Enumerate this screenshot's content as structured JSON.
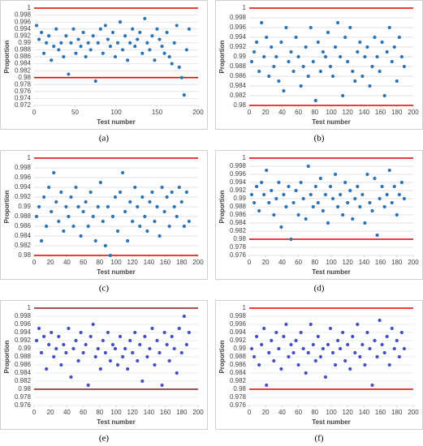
{
  "chart_data": [
    {
      "type": "scatter",
      "caption": "(a)",
      "ylabel": "Proportion",
      "xlabel": "Test number",
      "color": "#2e75b6",
      "reference_lines": [
        0.98,
        1
      ],
      "reference_color": "#e00000",
      "grid": true,
      "grid_color": "#d9d9d9",
      "xlim": [
        0,
        200
      ],
      "xticks": [
        0,
        50,
        100,
        150,
        200
      ],
      "ylim": [
        0.972,
        1
      ],
      "yticks": [
        0.972,
        0.974,
        0.976,
        0.978,
        0.98,
        0.982,
        0.984,
        0.986,
        0.988,
        0.99,
        0.992,
        0.994,
        0.996,
        0.998,
        1
      ],
      "x": [
        3,
        6,
        9,
        12,
        15,
        18,
        21,
        24,
        27,
        30,
        33,
        36,
        39,
        42,
        45,
        48,
        51,
        54,
        57,
        60,
        63,
        66,
        69,
        72,
        75,
        78,
        81,
        84,
        87,
        90,
        93,
        96,
        99,
        102,
        105,
        108,
        111,
        114,
        117,
        120,
        123,
        126,
        129,
        132,
        135,
        138,
        141,
        144,
        147,
        150,
        153,
        156,
        159,
        162,
        165,
        168,
        171,
        174,
        177,
        180,
        183,
        186,
        189
      ],
      "values": [
        0.995,
        0.991,
        0.993,
        0.987,
        0.99,
        0.992,
        0.985,
        0.989,
        0.994,
        0.988,
        0.99,
        0.986,
        0.992,
        0.981,
        0.99,
        0.994,
        0.987,
        0.991,
        0.989,
        0.993,
        0.986,
        0.99,
        0.988,
        0.992,
        0.979,
        0.99,
        0.994,
        0.987,
        0.995,
        0.991,
        0.989,
        0.993,
        0.986,
        0.99,
        0.996,
        0.988,
        0.992,
        0.985,
        0.99,
        0.994,
        0.989,
        0.991,
        0.993,
        0.987,
        0.997,
        0.99,
        0.988,
        0.992,
        0.985,
        0.994,
        0.991,
        0.989,
        0.987,
        0.993,
        0.986,
        0.984,
        0.99,
        0.995,
        0.983,
        0.98,
        0.975,
        0.988,
        0.994
      ]
    },
    {
      "type": "scatter",
      "caption": "(b)",
      "ylabel": "Proportion",
      "xlabel": "Test number",
      "color": "#2e75b6",
      "reference_lines": [
        0.98,
        1
      ],
      "reference_color": "#e00000",
      "grid": true,
      "grid_color": "#d9d9d9",
      "xlim": [
        0,
        200
      ],
      "xticks": [
        0,
        20,
        40,
        60,
        80,
        100,
        120,
        140,
        160,
        180,
        200
      ],
      "ylim": [
        0.98,
        1
      ],
      "yticks": [
        0.98,
        0.982,
        0.984,
        0.986,
        0.988,
        0.99,
        0.992,
        0.994,
        0.996,
        0.998,
        1
      ],
      "x": [
        3,
        6,
        9,
        12,
        15,
        18,
        21,
        24,
        27,
        30,
        33,
        36,
        39,
        42,
        45,
        48,
        51,
        54,
        57,
        60,
        63,
        66,
        69,
        72,
        75,
        78,
        81,
        84,
        87,
        90,
        93,
        96,
        99,
        102,
        105,
        108,
        111,
        114,
        117,
        120,
        123,
        126,
        129,
        132,
        135,
        138,
        141,
        144,
        147,
        150,
        153,
        156,
        159,
        162,
        165,
        168,
        171,
        174,
        177,
        180,
        183,
        186,
        189
      ],
      "values": [
        0.989,
        0.991,
        0.993,
        0.987,
        0.997,
        0.99,
        0.994,
        0.986,
        0.992,
        0.988,
        0.99,
        0.985,
        0.993,
        0.983,
        0.996,
        0.989,
        0.991,
        0.987,
        0.994,
        0.99,
        0.984,
        0.988,
        0.992,
        0.986,
        0.996,
        0.989,
        0.981,
        0.993,
        0.987,
        0.991,
        0.99,
        0.995,
        0.988,
        0.986,
        0.992,
        0.997,
        0.99,
        0.982,
        0.994,
        0.989,
        0.996,
        0.987,
        0.985,
        0.991,
        0.993,
        0.986,
        0.99,
        0.992,
        0.984,
        0.988,
        0.994,
        0.99,
        0.987,
        0.993,
        0.982,
        0.991,
        0.996,
        0.989,
        0.992,
        0.985,
        0.994,
        0.99,
        0.988
      ]
    },
    {
      "type": "scatter",
      "caption": "(c)",
      "ylabel": "Proportion",
      "xlabel": "Test number",
      "color": "#2e75b6",
      "reference_lines": [
        0.98,
        1
      ],
      "reference_color": "#e00000",
      "grid": true,
      "grid_color": "#d9d9d9",
      "xlim": [
        0,
        200
      ],
      "xticks": [
        0,
        20,
        40,
        60,
        80,
        100,
        120,
        140,
        160,
        180,
        200
      ],
      "ylim": [
        0.98,
        1
      ],
      "yticks": [
        0.98,
        0.982,
        0.984,
        0.986,
        0.988,
        0.99,
        0.992,
        0.994,
        0.996,
        0.998,
        1
      ],
      "x": [
        3,
        6,
        9,
        12,
        15,
        18,
        21,
        24,
        27,
        30,
        33,
        36,
        39,
        42,
        45,
        48,
        51,
        54,
        57,
        60,
        63,
        66,
        69,
        72,
        75,
        78,
        81,
        84,
        87,
        90,
        93,
        96,
        99,
        102,
        105,
        108,
        111,
        114,
        117,
        120,
        123,
        126,
        129,
        132,
        135,
        138,
        141,
        144,
        147,
        150,
        153,
        156,
        159,
        162,
        165,
        168,
        171,
        174,
        177,
        180,
        183,
        186,
        189
      ],
      "values": [
        0.988,
        0.99,
        0.983,
        0.992,
        0.986,
        0.994,
        0.989,
        0.997,
        0.991,
        0.987,
        0.993,
        0.985,
        0.99,
        0.988,
        0.992,
        0.986,
        0.994,
        0.99,
        0.984,
        0.989,
        0.991,
        0.986,
        0.993,
        0.988,
        0.983,
        0.99,
        0.995,
        0.987,
        0.982,
        0.99,
        0.98,
        0.988,
        0.992,
        0.985,
        0.993,
        0.997,
        0.989,
        0.983,
        0.991,
        0.987,
        0.994,
        0.99,
        0.986,
        0.992,
        0.988,
        0.985,
        0.991,
        0.993,
        0.987,
        0.99,
        0.984,
        0.994,
        0.989,
        0.992,
        0.986,
        0.993,
        0.99,
        0.988,
        0.994,
        0.991,
        0.986,
        0.993,
        0.987
      ]
    },
    {
      "type": "scatter",
      "caption": "(d)",
      "ylabel": "Proportion",
      "xlabel": "Test number",
      "color": "#2e75b6",
      "reference_lines": [
        0.98,
        1
      ],
      "reference_color": "#e00000",
      "grid": true,
      "grid_color": "#d9d9d9",
      "xlim": [
        0,
        200
      ],
      "xticks": [
        0,
        20,
        40,
        60,
        80,
        100,
        120,
        140,
        160,
        180,
        200
      ],
      "ylim": [
        0.976,
        1
      ],
      "yticks": [
        0.976,
        0.978,
        0.98,
        0.982,
        0.984,
        0.986,
        0.988,
        0.99,
        0.992,
        0.994,
        0.996,
        0.998,
        1
      ],
      "x": [
        3,
        6,
        9,
        12,
        15,
        18,
        21,
        24,
        27,
        30,
        33,
        36,
        39,
        42,
        45,
        48,
        51,
        54,
        57,
        60,
        63,
        66,
        69,
        72,
        75,
        78,
        81,
        84,
        87,
        90,
        93,
        96,
        99,
        102,
        105,
        108,
        111,
        114,
        117,
        120,
        123,
        126,
        129,
        132,
        135,
        138,
        141,
        144,
        147,
        150,
        153,
        156,
        159,
        162,
        165,
        168,
        171,
        174,
        177,
        180,
        183,
        186,
        189
      ],
      "values": [
        0.991,
        0.989,
        0.993,
        0.987,
        0.994,
        0.991,
        0.997,
        0.989,
        0.992,
        0.986,
        0.99,
        0.994,
        0.983,
        0.991,
        0.988,
        0.993,
        0.98,
        0.989,
        0.992,
        0.986,
        0.994,
        0.99,
        0.985,
        0.998,
        0.991,
        0.988,
        0.993,
        0.989,
        0.995,
        0.987,
        0.991,
        0.984,
        0.993,
        0.99,
        0.996,
        0.988,
        0.991,
        0.986,
        0.994,
        0.989,
        0.992,
        0.985,
        0.99,
        0.993,
        0.988,
        0.991,
        0.984,
        0.996,
        0.989,
        0.987,
        0.995,
        0.981,
        0.99,
        0.993,
        0.988,
        0.991,
        0.997,
        0.989,
        0.993,
        0.986,
        0.991,
        0.994,
        0.99
      ]
    },
    {
      "type": "scatter",
      "caption": "(e)",
      "ylabel": "Proportion",
      "xlabel": "Test number",
      "color": "#4850c0",
      "reference_lines": [
        0.98,
        1
      ],
      "reference_color": "#8b1a1a",
      "grid": true,
      "grid_color": "#d8ecd8",
      "xlim": [
        0,
        200
      ],
      "xticks": [
        0,
        20,
        40,
        60,
        80,
        100,
        120,
        140,
        160,
        180,
        200
      ],
      "ylim": [
        0.976,
        1
      ],
      "yticks": [
        0.976,
        0.978,
        0.98,
        0.982,
        0.984,
        0.986,
        0.988,
        0.99,
        0.992,
        0.994,
        0.996,
        0.998,
        1
      ],
      "x": [
        3,
        6,
        9,
        12,
        15,
        18,
        21,
        24,
        27,
        30,
        33,
        36,
        39,
        42,
        45,
        48,
        51,
        54,
        57,
        60,
        63,
        66,
        69,
        72,
        75,
        78,
        81,
        84,
        87,
        90,
        93,
        96,
        99,
        102,
        105,
        108,
        111,
        114,
        117,
        120,
        123,
        126,
        129,
        132,
        135,
        138,
        141,
        144,
        147,
        150,
        153,
        156,
        159,
        162,
        165,
        168,
        171,
        174,
        177,
        180,
        183,
        186,
        189
      ],
      "values": [
        0.992,
        0.995,
        0.989,
        0.993,
        0.985,
        0.991,
        0.994,
        0.988,
        0.99,
        0.993,
        0.986,
        0.991,
        0.989,
        0.995,
        0.983,
        0.99,
        0.992,
        0.987,
        0.994,
        0.989,
        0.991,
        0.981,
        0.993,
        0.996,
        0.988,
        0.99,
        0.985,
        0.992,
        0.989,
        0.994,
        0.987,
        0.991,
        0.99,
        0.986,
        0.993,
        0.988,
        0.99,
        0.985,
        0.992,
        0.989,
        0.994,
        0.987,
        0.991,
        0.982,
        0.993,
        0.988,
        0.99,
        0.995,
        0.986,
        0.992,
        0.989,
        0.981,
        0.994,
        0.991,
        0.987,
        0.993,
        0.99,
        0.984,
        0.995,
        0.989,
        0.998,
        0.991,
        0.994
      ]
    },
    {
      "type": "scatter",
      "caption": "(f)",
      "ylabel": "Proportion",
      "xlabel": "Test number",
      "color": "#4850c0",
      "reference_lines": [
        0.98,
        1
      ],
      "reference_color": "#e00000",
      "grid": true,
      "grid_color": "#d8ecd8",
      "xlim": [
        0,
        200
      ],
      "xticks": [
        0,
        20,
        40,
        60,
        80,
        100,
        120,
        140,
        160,
        180,
        200
      ],
      "ylim": [
        0.976,
        1
      ],
      "yticks": [
        0.976,
        0.978,
        0.98,
        0.982,
        0.984,
        0.986,
        0.988,
        0.99,
        0.992,
        0.994,
        0.996,
        0.998,
        1
      ],
      "x": [
        3,
        6,
        9,
        12,
        15,
        18,
        21,
        24,
        27,
        30,
        33,
        36,
        39,
        42,
        45,
        48,
        51,
        54,
        57,
        60,
        63,
        66,
        69,
        72,
        75,
        78,
        81,
        84,
        87,
        90,
        93,
        96,
        99,
        102,
        105,
        108,
        111,
        114,
        117,
        120,
        123,
        126,
        129,
        132,
        135,
        138,
        141,
        144,
        147,
        150,
        153,
        156,
        159,
        162,
        165,
        168,
        171,
        174,
        177,
        180,
        183,
        186,
        189
      ],
      "values": [
        0.99,
        0.988,
        0.993,
        0.986,
        0.991,
        0.995,
        0.981,
        0.989,
        0.992,
        0.987,
        0.994,
        0.99,
        0.985,
        0.993,
        0.996,
        0.988,
        0.991,
        0.989,
        0.992,
        0.986,
        0.994,
        0.99,
        0.984,
        0.989,
        0.996,
        0.991,
        0.987,
        0.993,
        0.988,
        0.99,
        0.983,
        0.991,
        0.995,
        0.989,
        0.986,
        0.992,
        0.99,
        0.994,
        0.987,
        0.991,
        0.985,
        0.993,
        0.989,
        0.996,
        0.988,
        0.991,
        0.986,
        0.994,
        0.99,
        0.981,
        0.992,
        0.988,
        0.997,
        0.991,
        0.989,
        0.993,
        0.986,
        0.995,
        0.99,
        0.992,
        0.988,
        0.994,
        0.99
      ]
    }
  ]
}
